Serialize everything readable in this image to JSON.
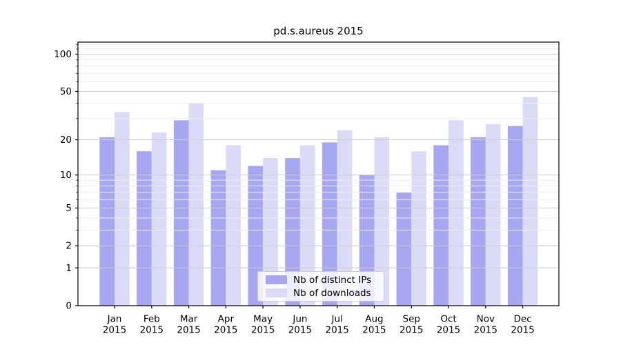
{
  "title": "pd.s.aureus 2015",
  "chart_data": {
    "type": "bar",
    "title": "pd.s.aureus 2015",
    "categories": [
      "Jan 2015",
      "Feb 2015",
      "Mar 2015",
      "Apr 2015",
      "May 2015",
      "Jun 2015",
      "Jul 2015",
      "Aug 2015",
      "Sep 2015",
      "Oct 2015",
      "Nov 2015",
      "Dec 2015"
    ],
    "series": [
      {
        "name": "Nb of distinct IPs",
        "color": "#a6a6f1",
        "values": [
          21,
          16,
          29,
          11,
          12,
          14,
          19,
          10,
          7,
          18,
          21,
          26
        ]
      },
      {
        "name": "Nb of downloads",
        "color": "#dbdbf8",
        "values": [
          34,
          23,
          40,
          18,
          14,
          18,
          24,
          21,
          16,
          29,
          27,
          45
        ]
      }
    ],
    "xlabel": "",
    "ylabel": "",
    "yscale": "log1p",
    "ylim": [
      0,
      125
    ],
    "y_major_ticks": [
      0,
      1,
      2,
      5,
      10,
      20,
      50,
      100
    ],
    "y_minor_ticks": [
      3,
      4,
      6,
      7,
      8,
      9,
      30,
      40,
      60,
      70,
      80,
      90,
      110,
      120
    ],
    "grid": "horizontal, major and minor, drawn over bars",
    "legend_position": "lower center"
  },
  "colors": {
    "background": "#ffffff",
    "bar_distinct_ips": "#a6a6f1",
    "bar_downloads": "#dbdbf8",
    "grid_major": "#cccccc",
    "grid_minor": "#eeeeee",
    "axis": "#000000",
    "legend_border": "#cccccc"
  }
}
